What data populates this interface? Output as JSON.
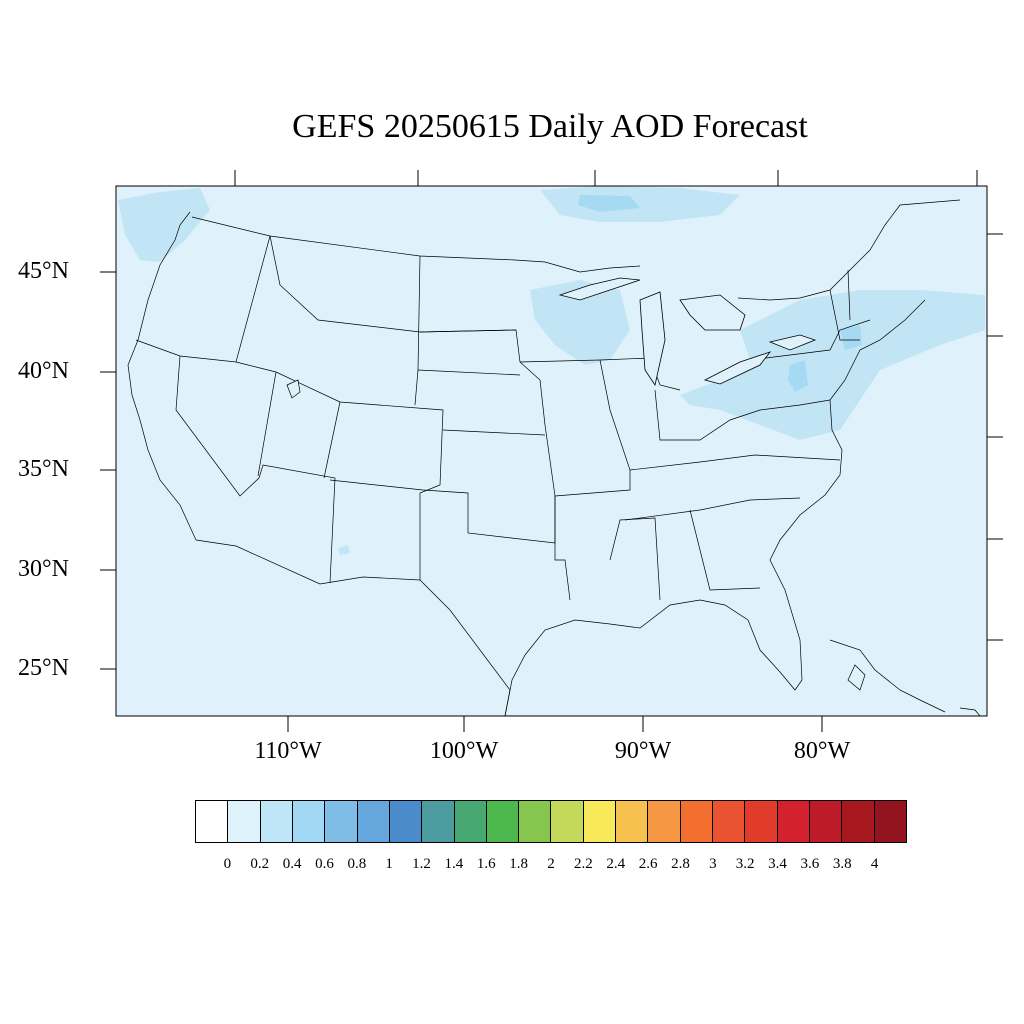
{
  "title": "GEFS 20250615 Daily AOD Forecast",
  "map": {
    "region": "Contiguous United States",
    "projection": "Lambert conformal",
    "background_color": "#dff1fa",
    "plume_color": "#c2e5f6",
    "plume_strong_color": "#a5daf2",
    "boundary_color": "#000000"
  },
  "lat_labels": [
    "45°N",
    "40°N",
    "35°N",
    "30°N",
    "25°N"
  ],
  "lon_labels": [
    "110°W",
    "100°W",
    "90°W",
    "80°W"
  ],
  "colorbar": {
    "labels": [
      "0",
      "0.2",
      "0.4",
      "0.6",
      "0.8",
      "1",
      "1.2",
      "1.4",
      "1.6",
      "1.8",
      "2",
      "2.2",
      "2.4",
      "2.6",
      "2.8",
      "3",
      "3.2",
      "3.4",
      "3.6",
      "3.8",
      "4"
    ],
    "colors": [
      "#ffffff",
      "#def2fb",
      "#bfe6f7",
      "#a1d8f3",
      "#7fbde6",
      "#65a7dc",
      "#4a8ccb",
      "#4c9b9e",
      "#48a871",
      "#4db84d",
      "#86c64f",
      "#c4d95a",
      "#f7e95a",
      "#f7c150",
      "#f69843",
      "#f36f30",
      "#ea5332",
      "#e13c2a",
      "#d3222d",
      "#bd1b27",
      "#a8181f",
      "#93141e"
    ]
  }
}
